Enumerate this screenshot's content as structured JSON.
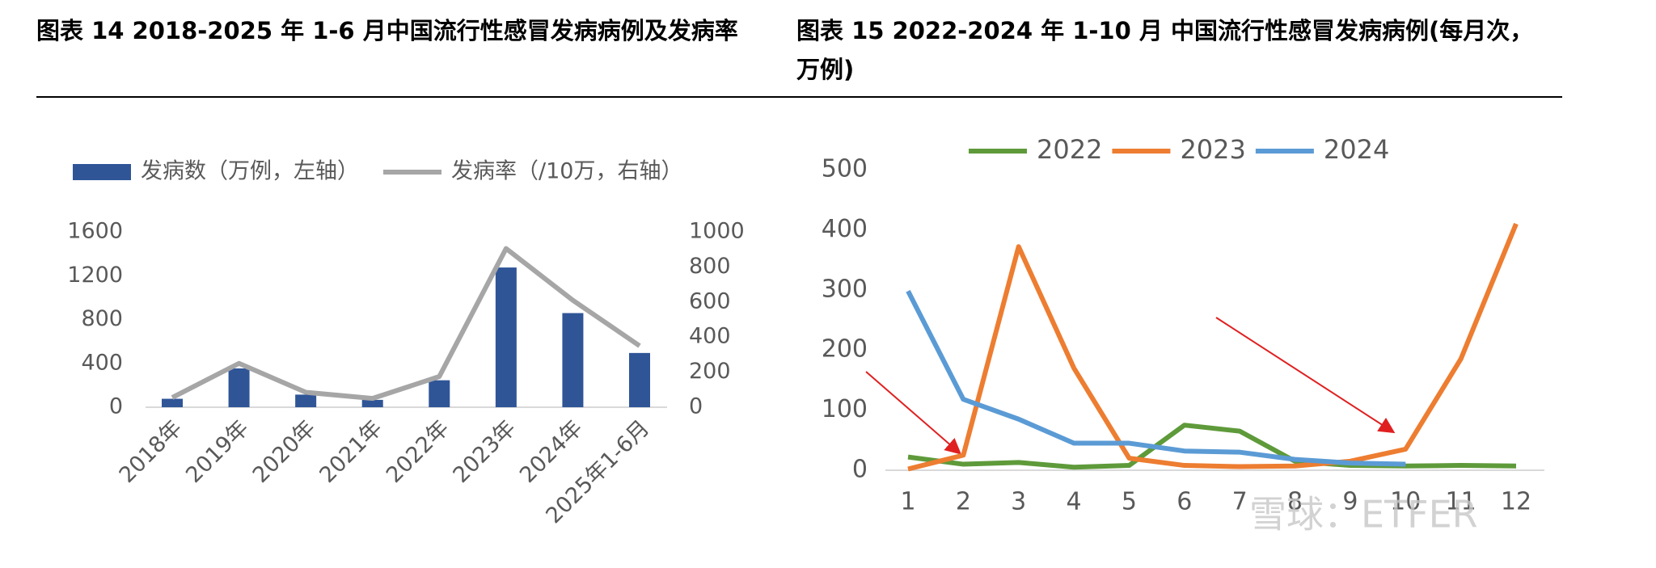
{
  "chart_data": [
    {
      "type": "bar_line",
      "title": "图表 14 2018-2025 年 1-6 月中国流行性感冒发病病例及发病率",
      "categories": [
        "2018年",
        "2019年",
        "2020年",
        "2021年",
        "2022年",
        "2023年",
        "2024年",
        "2025年1-6月"
      ],
      "series": [
        {
          "name": "发病数（万例，左轴）",
          "color": "#2f5597",
          "kind": "bar",
          "values": [
            77,
            354,
            115,
            67,
            246,
            1275,
            859,
            495
          ]
        },
        {
          "name": "发病率（/10万，右轴）",
          "color": "#a6a6a6",
          "kind": "line",
          "axis": "y2",
          "values": [
            55,
            250,
            85,
            50,
            175,
            905,
            610,
            350
          ]
        }
      ],
      "ylim": [
        0,
        1600
      ],
      "yticks": [
        0,
        400,
        800,
        1200,
        1600
      ],
      "y2lim": [
        0,
        1000
      ],
      "y2ticks": [
        0,
        200,
        400,
        600,
        800,
        1000
      ]
    },
    {
      "type": "line",
      "title": "图表 15 2022-2024 年 1-10 月 中国流行性感冒发病病例(每月次，万例)",
      "categories": [
        1,
        2,
        3,
        4,
        5,
        6,
        7,
        8,
        9,
        10,
        11,
        12
      ],
      "series": [
        {
          "name": "2022",
          "color": "#5e9a3a",
          "values": [
            22,
            10,
            13,
            5,
            8,
            75,
            65,
            15,
            8,
            7,
            8,
            7
          ]
        },
        {
          "name": "2023",
          "color": "#ed7d31",
          "values": [
            2,
            25,
            372,
            170,
            20,
            8,
            6,
            7,
            15,
            35,
            185,
            410
          ]
        },
        {
          "name": "2024",
          "color": "#5b9bd5",
          "values": [
            298,
            118,
            85,
            45,
            45,
            32,
            30,
            18,
            12,
            10,
            null,
            null
          ]
        }
      ],
      "ylim": [
        0,
        500
      ],
      "yticks": [
        0,
        100,
        200,
        300,
        400,
        500
      ],
      "watermark": "雪球：ETFER"
    }
  ]
}
